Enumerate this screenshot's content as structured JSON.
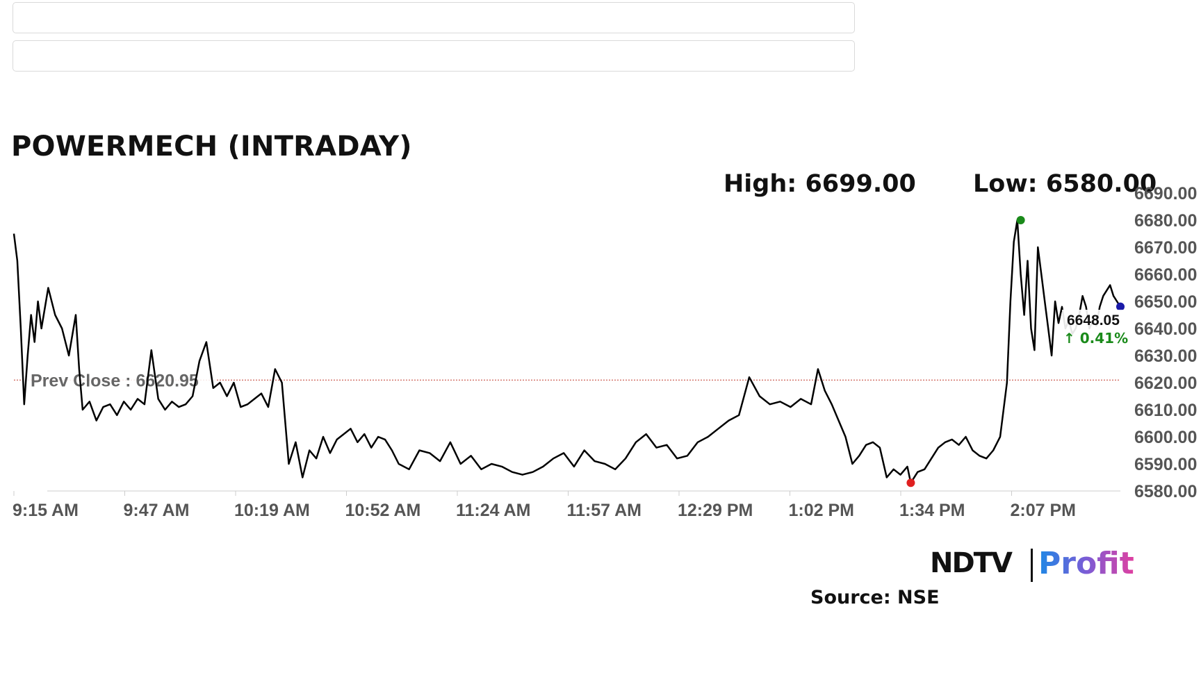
{
  "inputs": [
    {
      "value": "",
      "placeholder": ""
    },
    {
      "value": "",
      "placeholder": ""
    }
  ],
  "header": {
    "title": "POWERMECH (INTRADAY)",
    "high_label": "High: 6699.00",
    "low_label": "Low: 6580.00"
  },
  "footer": {
    "logo_ndtv": "NDTV",
    "logo_profit": "Profit",
    "source": "Source: NSE"
  },
  "colors": {
    "line": "#000000",
    "prev_close": "#c0392b",
    "high_marker": "#1a8a1a",
    "low_marker": "#e02020",
    "last_marker": "#1a1aa8",
    "change_positive": "#1a8a1a"
  },
  "chart_data": {
    "type": "line",
    "title": "POWERMECH (INTRADAY)",
    "xlabel": "",
    "ylabel": "",
    "x_ticks": [
      "9:15 AM",
      "9:47 AM",
      "10:19 AM",
      "10:52 AM",
      "11:24 AM",
      "11:57 AM",
      "12:29 PM",
      "1:02 PM",
      "1:34 PM",
      "2:07 PM"
    ],
    "y_ticks": [
      "6580.00",
      "6590.00",
      "6600.00",
      "6610.00",
      "6620.00",
      "6630.00",
      "6640.00",
      "6650.00",
      "6660.00",
      "6670.00",
      "6680.00",
      "6690.00"
    ],
    "ylim": [
      6580,
      6690
    ],
    "x_range_minutes_after_open": [
      0,
      322
    ],
    "grid": false,
    "prev_close": {
      "label": "Prev Close : 6620.95",
      "value": 6620.95
    },
    "last": {
      "value_label": "6648.05",
      "change_label": "↑ 0.41%",
      "value": 6648.05
    },
    "high_point": {
      "minutes_after_open": 293,
      "value": 6680
    },
    "low_point": {
      "minutes_after_open": 261,
      "value": 6583
    },
    "series": [
      {
        "x_minutes_after_open": [
          0,
          1,
          2,
          3,
          4,
          5,
          6,
          7,
          8,
          10,
          12,
          14,
          16,
          18,
          19,
          20,
          22,
          24,
          26,
          28,
          30,
          32,
          34,
          36,
          38,
          40,
          42,
          44,
          46,
          48,
          50,
          52,
          54,
          56,
          58,
          60,
          62,
          64,
          66,
          68,
          70,
          72,
          74,
          76,
          78,
          80,
          82,
          84,
          86,
          88,
          90,
          92,
          94,
          96,
          98,
          100,
          102,
          104,
          106,
          108,
          110,
          112,
          115,
          118,
          121,
          124,
          127,
          130,
          133,
          136,
          139,
          142,
          145,
          148,
          151,
          154,
          157,
          160,
          163,
          166,
          169,
          172,
          175,
          178,
          181,
          184,
          187,
          190,
          193,
          196,
          199,
          202,
          205,
          208,
          211,
          214,
          217,
          220,
          223,
          226,
          229,
          232,
          234,
          236,
          238,
          240,
          242,
          244,
          246,
          248,
          250,
          252,
          254,
          256,
          258,
          260,
          261,
          263,
          265,
          267,
          269,
          271,
          273,
          275,
          277,
          279,
          281,
          283,
          285,
          287,
          289,
          290,
          291,
          292,
          293,
          294,
          295,
          296,
          297,
          298,
          299,
          300,
          301,
          302,
          303,
          304,
          305,
          306,
          307,
          308,
          309,
          310,
          311,
          312,
          313,
          314,
          315,
          316,
          317,
          318,
          319,
          320,
          321,
          322
        ],
        "values": [
          6675,
          6665,
          6640,
          6612,
          6630,
          6645,
          6635,
          6650,
          6640,
          6655,
          6645,
          6640,
          6630,
          6645,
          6625,
          6610,
          6613,
          6606,
          6611,
          6612,
          6608,
          6613,
          6610,
          6614,
          6612,
          6632,
          6614,
          6610,
          6613,
          6611,
          6612,
          6615,
          6628,
          6635,
          6618,
          6620,
          6615,
          6620,
          6611,
          6612,
          6614,
          6616,
          6611,
          6625,
          6620,
          6590,
          6598,
          6585,
          6595,
          6592,
          6600,
          6594,
          6599,
          6601,
          6603,
          6598,
          6601,
          6596,
          6600,
          6599,
          6595,
          6590,
          6588,
          6595,
          6594,
          6591,
          6598,
          6590,
          6593,
          6588,
          6590,
          6589,
          6587,
          6586,
          6587,
          6589,
          6592,
          6594,
          6589,
          6595,
          6591,
          6590,
          6588,
          6592,
          6598,
          6601,
          6596,
          6597,
          6592,
          6593,
          6598,
          6600,
          6603,
          6606,
          6608,
          6622,
          6615,
          6612,
          6613,
          6611,
          6614,
          6612,
          6625,
          6617,
          6612,
          6606,
          6600,
          6590,
          6593,
          6597,
          6598,
          6596,
          6585,
          6588,
          6586,
          6589,
          6583,
          6587,
          6588,
          6592,
          6596,
          6598,
          6599,
          6597,
          6600,
          6595,
          6593,
          6592,
          6595,
          6600,
          6620,
          6650,
          6672,
          6680,
          6660,
          6645,
          6665,
          6640,
          6632,
          6670,
          6660,
          6650,
          6640,
          6630,
          6650,
          6642,
          6648,
          6640,
          6643,
          6638,
          6640,
          6645,
          6652,
          6648,
          6640,
          6643,
          6641,
          6648,
          6652,
          6654,
          6656,
          6652,
          6650,
          6648
        ]
      }
    ]
  }
}
